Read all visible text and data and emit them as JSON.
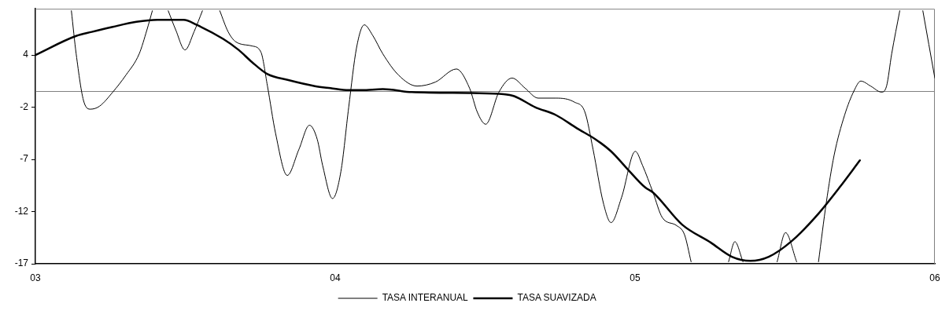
{
  "chart_data": {
    "type": "line",
    "xlim": [
      3,
      6
    ],
    "xticks": [
      {
        "value": 3,
        "label": "03"
      },
      {
        "value": 4,
        "label": "04"
      },
      {
        "value": 5,
        "label": "05"
      },
      {
        "value": 6,
        "label": "06"
      }
    ],
    "ylim": [
      -17.2,
      8.2
    ],
    "yticks": [
      {
        "value": -17.2,
        "label": "-17"
      },
      {
        "value": -12,
        "label": "-12"
      },
      {
        "value": -6.8,
        "label": "-7"
      },
      {
        "value": -1.6,
        "label": "-2"
      },
      {
        "value": 3.6,
        "label": "4"
      }
    ],
    "legend": "bottom",
    "marker": "none",
    "line_style": "solid",
    "ref_lines": [
      {
        "axis": "y",
        "value": 0,
        "color": "#808080"
      }
    ],
    "series": [
      {
        "name": "TASA INTERANUAL",
        "color": "#000000",
        "x": [
          3.12,
          3.136,
          3.162,
          3.184,
          3.214,
          3.258,
          3.302,
          3.346,
          3.372,
          3.39,
          3.415,
          3.443,
          3.468,
          3.499,
          3.529,
          3.557,
          3.585,
          3.615,
          3.643,
          3.669,
          3.722,
          3.752,
          3.774,
          3.801,
          3.84,
          3.879,
          3.914,
          3.94,
          3.958,
          3.991,
          4.019,
          4.045,
          4.071,
          4.097,
          4.124,
          4.159,
          4.211,
          4.273,
          4.334,
          4.404,
          4.448,
          4.474,
          4.502,
          4.546,
          4.59,
          4.633,
          4.677,
          4.737,
          4.798,
          4.833,
          4.86,
          4.894,
          4.92,
          4.955,
          5.001,
          5.025,
          5.06,
          5.091,
          5.139,
          5.165,
          5.187,
          5.25,
          5.312,
          5.333,
          5.36,
          5.42,
          5.474,
          5.502,
          5.539,
          5.575,
          5.612,
          5.638,
          5.664,
          5.699,
          5.73,
          5.753,
          5.786,
          5.822,
          5.839,
          5.856,
          5.883,
          5.92,
          5.96,
          6.0
        ],
        "values": [
          8.0,
          3.7,
          -1.1,
          -1.8,
          -1.5,
          -0.1,
          1.6,
          3.7,
          6.1,
          8.0,
          null,
          8.0,
          6.1,
          4.1,
          5.9,
          8.0,
          null,
          8.0,
          5.9,
          4.9,
          4.5,
          3.9,
          0.5,
          -4.2,
          -8.4,
          -5.8,
          -3.4,
          -4.8,
          -7.4,
          -10.7,
          -8.0,
          -1.6,
          4.3,
          6.6,
          5.6,
          3.7,
          1.6,
          0.5,
          0.9,
          2.2,
          0.3,
          -2.1,
          -3.3,
          -0.1,
          1.3,
          0.3,
          -0.7,
          -0.7,
          -1.1,
          -2.1,
          -5.8,
          -11.1,
          -13.1,
          -10.6,
          -6.0,
          -7.4,
          -10.1,
          -12.6,
          -13.4,
          -14.3,
          -17.0,
          null,
          -17.0,
          -15.0,
          -17.0,
          null,
          -17.0,
          -14.1,
          -17.0,
          null,
          -17.0,
          -11.1,
          -6.4,
          -2.4,
          0.0,
          1.0,
          0.5,
          -0.1,
          0.5,
          3.7,
          8.0,
          null,
          8.0,
          1.3
        ]
      },
      {
        "name": "TASA SUAVIZADA",
        "color": "#000000",
        "x": [
          3.0,
          3.136,
          3.188,
          3.258,
          3.337,
          3.407,
          3.494,
          3.538,
          3.626,
          3.678,
          3.722,
          3.774,
          3.844,
          3.932,
          3.984,
          4.045,
          4.089,
          4.159,
          4.255,
          4.457,
          4.562,
          4.597,
          4.667,
          4.737,
          4.806,
          4.868,
          4.92,
          4.973,
          5.034,
          5.06,
          5.157,
          5.253,
          5.323,
          5.385,
          5.446,
          5.524,
          5.612,
          5.682,
          5.75
        ],
        "values": [
          3.6,
          5.5,
          5.9,
          6.4,
          6.9,
          7.1,
          7.1,
          6.6,
          5.2,
          4.1,
          2.9,
          1.7,
          1.1,
          0.5,
          0.3,
          0.1,
          0.1,
          0.2,
          -0.1,
          -0.2,
          -0.3,
          -0.5,
          -1.6,
          -2.4,
          -3.7,
          -4.8,
          -6.0,
          -7.7,
          -9.6,
          -10.1,
          -13.3,
          -15.1,
          -16.5,
          -16.9,
          -16.5,
          -14.9,
          -12.2,
          -9.6,
          -6.9
        ]
      }
    ]
  }
}
